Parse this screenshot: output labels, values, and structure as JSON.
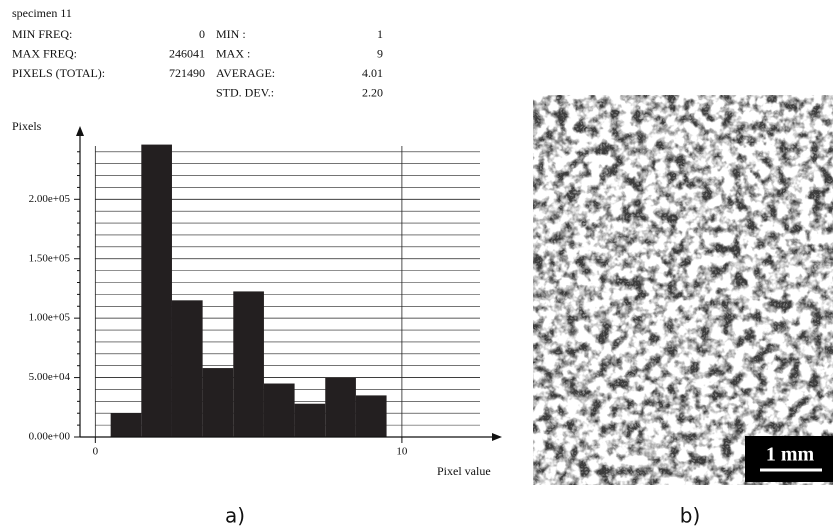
{
  "header": {
    "title": "specimen 11",
    "left": [
      {
        "label": "MIN FREQ:",
        "value": "0"
      },
      {
        "label": "MAX FREQ:",
        "value": "246041"
      },
      {
        "label": "PIXELS (TOTAL):",
        "value": "721490"
      }
    ],
    "right": [
      {
        "label": "MIN :",
        "value": "1"
      },
      {
        "label": "MAX :",
        "value": "9"
      },
      {
        "label": "AVERAGE:",
        "value": "4.01"
      },
      {
        "label": "STD. DEV.:",
        "value": "2.20"
      }
    ]
  },
  "chart_data": {
    "type": "histogram",
    "y_label": "Pixels",
    "x_label": "Pixel value",
    "color": "#231f20",
    "bins": [
      0.5,
      1.5,
      2.5,
      3.5,
      4.5,
      5.5,
      6.5,
      7.5,
      8.5,
      9.5
    ],
    "values": [
      20000,
      246041,
      115000,
      58000,
      122500,
      45000,
      28000,
      50000,
      35000
    ],
    "xlim": [
      -0.5,
      13.2
    ],
    "xticks": [
      0,
      10
    ],
    "ylim": [
      0,
      260000
    ],
    "yticks": [
      {
        "value": 0,
        "label": "0.00e+00"
      },
      {
        "value": 50000,
        "label": "5.00e+04"
      },
      {
        "value": 100000,
        "label": "1.00e+05"
      },
      {
        "value": 150000,
        "label": "1.50e+05"
      },
      {
        "value": 200000,
        "label": "2.00e+05"
      }
    ],
    "grid": true,
    "caption": "a)"
  },
  "image": {
    "scale_bar": "1 mm",
    "caption": "b)"
  }
}
